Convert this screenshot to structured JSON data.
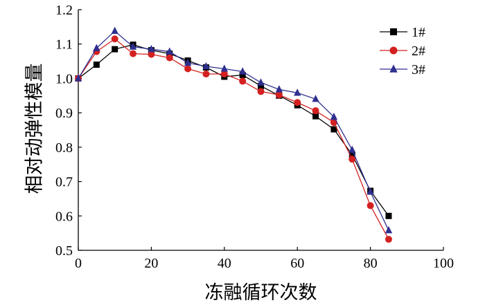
{
  "chart_data": {
    "type": "line",
    "xlabel": "冻融循环次数",
    "ylabel": "相对动弹性模量",
    "xlim": [
      0,
      100
    ],
    "ylim": [
      0.5,
      1.2
    ],
    "xticks": [
      "0",
      "20",
      "40",
      "60",
      "80",
      "100"
    ],
    "yticks": [
      "0.5",
      "0.6",
      "0.7",
      "0.8",
      "0.9",
      "1.0",
      "1.1",
      "1.2"
    ],
    "x": [
      0,
      5,
      10,
      15,
      20,
      25,
      30,
      35,
      40,
      45,
      50,
      55,
      60,
      65,
      70,
      75,
      80,
      85
    ],
    "legend_position": "top-right",
    "grid": false,
    "series": [
      {
        "name": "1#",
        "marker": "square",
        "color": "#000000",
        "values": [
          1.0,
          1.04,
          1.085,
          1.098,
          1.082,
          1.072,
          1.052,
          1.032,
          1.005,
          1.01,
          0.978,
          0.95,
          0.922,
          0.89,
          0.852,
          0.778,
          0.673,
          0.6
        ]
      },
      {
        "name": "2#",
        "marker": "circle",
        "color": "#d42020",
        "values": [
          1.0,
          1.078,
          1.115,
          1.072,
          1.07,
          1.06,
          1.028,
          1.013,
          1.013,
          0.992,
          0.962,
          0.952,
          0.93,
          0.906,
          0.872,
          0.765,
          0.63,
          0.532
        ]
      },
      {
        "name": "3#",
        "marker": "triangle",
        "color": "#2f2f8f",
        "values": [
          1.0,
          1.088,
          1.138,
          1.092,
          1.085,
          1.078,
          1.045,
          1.035,
          1.028,
          1.02,
          0.988,
          0.968,
          0.958,
          0.94,
          0.888,
          0.792,
          0.67,
          0.558
        ]
      }
    ]
  }
}
